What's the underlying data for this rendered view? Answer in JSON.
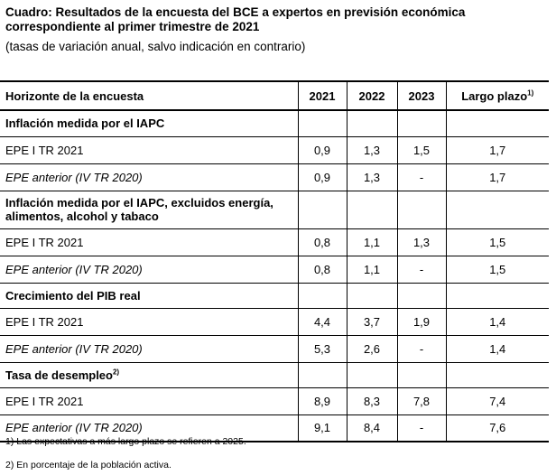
{
  "title": "Cuadro: Resultados de la encuesta del BCE a expertos en previsión económica correspondiente al primer trimestre de 2021",
  "subtitle": "(tasas de variación anual, salvo indicación en contrario)",
  "header": {
    "horizon": "Horizonte de la encuesta",
    "y2021": "2021",
    "y2022": "2022",
    "y2023": "2023",
    "long": "Largo plazo",
    "long_note": "1)"
  },
  "sections": [
    {
      "label": "Inflación medida por el IAPC",
      "note": "",
      "rows": [
        {
          "label": "EPE I TR 2021",
          "v2021": "0,9",
          "v2022": "1,3",
          "v2023": "1,5",
          "long": "1,7"
        },
        {
          "label": "EPE anterior (IV TR 2020)",
          "v2021": "0,9",
          "v2022": "1,3",
          "v2023": "-",
          "long": "1,7"
        }
      ]
    },
    {
      "label": "Inflación medida por el IAPC, excluidos energía, alimentos, alcohol y tabaco",
      "note": "",
      "rows": [
        {
          "label": "EPE I TR 2021",
          "v2021": "0,8",
          "v2022": "1,1",
          "v2023": "1,3",
          "long": "1,5"
        },
        {
          "label": "EPE anterior (IV TR 2020)",
          "v2021": "0,8",
          "v2022": "1,1",
          "v2023": "-",
          "long": "1,5"
        }
      ]
    },
    {
      "label": "Crecimiento del PIB real",
      "note": "",
      "rows": [
        {
          "label": "EPE I TR 2021",
          "v2021": "4,4",
          "v2022": "3,7",
          "v2023": "1,9",
          "long": "1,4"
        },
        {
          "label": "EPE anterior (IV TR 2020)",
          "v2021": "5,3",
          "v2022": "2,6",
          "v2023": "-",
          "long": "1,4"
        }
      ]
    },
    {
      "label": "Tasa de desempleo",
      "note": "2)",
      "rows": [
        {
          "label": "EPE I TR 2021",
          "v2021": "8,9",
          "v2022": "8,3",
          "v2023": "7,8",
          "long": "7,4"
        },
        {
          "label": "EPE anterior (IV TR 2020)",
          "v2021": "9,1",
          "v2022": "8,4",
          "v2023": "-",
          "long": "7,6"
        }
      ]
    }
  ],
  "footnotes": {
    "n1": "1) Las expectativas a más largo plazo se refieren a 2025.",
    "n2": "2) En porcentaje de la población activa."
  }
}
